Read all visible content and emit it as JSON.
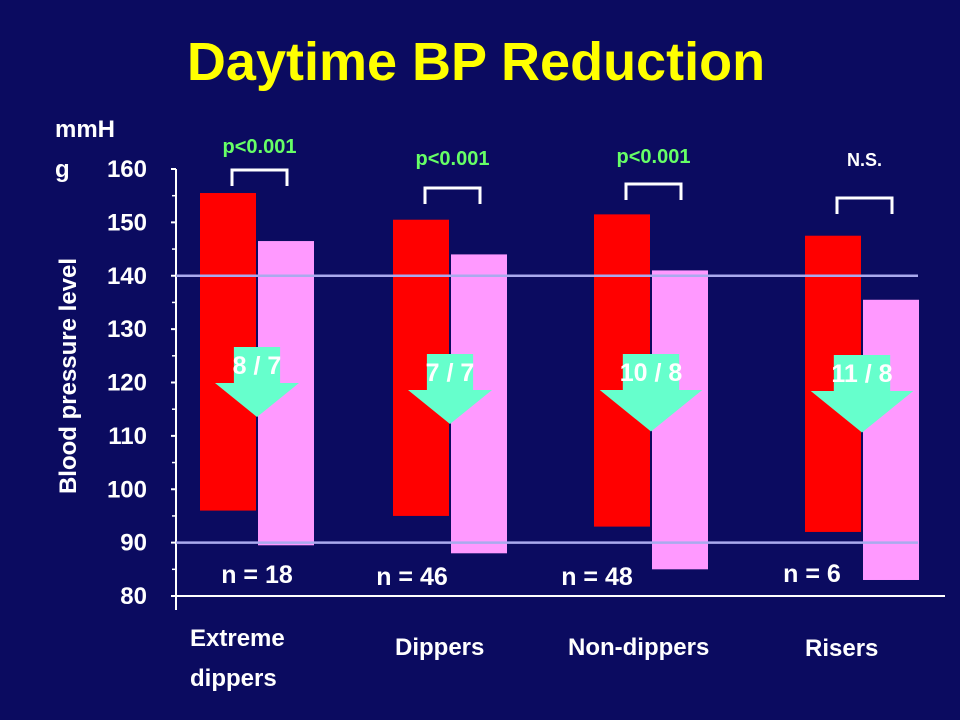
{
  "title": "Daytime BP Reduction",
  "chart_data": {
    "type": "bar",
    "y_unit_lines": [
      "mmH",
      "g"
    ],
    "ylabel": "Blood pressure level",
    "ylim": [
      80,
      160
    ],
    "yticks": [
      80,
      90,
      100,
      110,
      120,
      130,
      140,
      150,
      160
    ],
    "reference_lines": [
      140,
      90
    ],
    "colors": {
      "before": "#ff0000",
      "after": "#ff99ff",
      "arrow": "#66ffcc",
      "pvalue": "#66ff66",
      "line": "#aaaaee"
    },
    "groups": [
      {
        "category_lines": [
          "Extreme",
          "dippers"
        ],
        "n_label": "n = 18",
        "significance": "p<0.001",
        "reduction": "8 / 7",
        "before": [
          96,
          155.5
        ],
        "after": [
          89.5,
          146.5
        ]
      },
      {
        "category_lines": [
          "Dippers"
        ],
        "n_label": "n = 46",
        "significance": "p<0.001",
        "reduction": "7 / 7",
        "before": [
          95,
          150.5
        ],
        "after": [
          88,
          144
        ]
      },
      {
        "category_lines": [
          "Non-dippers"
        ],
        "n_label": "n = 48",
        "significance": "p<0.001",
        "reduction": "10 / 8",
        "before": [
          93,
          151.5
        ],
        "after": [
          85,
          141
        ]
      },
      {
        "category_lines": [
          "Risers"
        ],
        "n_label": "n = 6",
        "significance": "N.S.",
        "reduction": "11 / 8",
        "before": [
          92,
          147.5
        ],
        "after": [
          83,
          135.5
        ]
      }
    ]
  }
}
